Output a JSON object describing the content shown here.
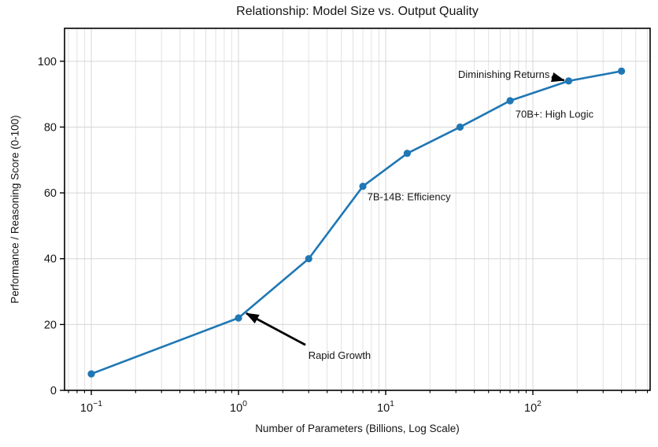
{
  "chart_data": {
    "type": "line",
    "title": "Relationship: Model Size vs. Output Quality",
    "xlabel": "Number of Parameters (Billions, Log Scale)",
    "ylabel": "Performance / Reasoning Score (0-100)",
    "x_scale": "log",
    "grid": true,
    "legend": "none",
    "x": [
      0.1,
      1,
      3,
      7,
      14,
      32,
      70,
      175,
      400
    ],
    "y": [
      5,
      22,
      40,
      62,
      72,
      80,
      88,
      94,
      97
    ],
    "xlim": [
      0.0658,
      626
    ],
    "ylim": [
      0,
      110
    ],
    "x_ticks": [
      {
        "value": 0.1,
        "exp": "−1"
      },
      {
        "value": 1,
        "exp": "0"
      },
      {
        "value": 10,
        "exp": "1"
      },
      {
        "value": 100,
        "exp": "2"
      }
    ],
    "y_ticks": [
      0,
      20,
      40,
      60,
      80,
      100
    ],
    "annotations": [
      {
        "text": "Diminishing Returns",
        "x": 130,
        "y": 96.0,
        "align": "end",
        "arrow": {
          "from": [
            134,
            95.2
          ],
          "to": [
            163,
            94.2
          ]
        }
      },
      {
        "text": "70B+: High Logic",
        "x": 76,
        "y": 83.9,
        "align": "start"
      },
      {
        "text": "7B-14B: Efficiency",
        "x": 7.5,
        "y": 58.8,
        "align": "start"
      },
      {
        "text": "Rapid Growth",
        "x": 2.98,
        "y": 10.7,
        "align": "start",
        "arrow": {
          "from": [
            2.85,
            13.8
          ],
          "to": [
            1.13,
            23.4
          ]
        }
      }
    ],
    "colors": {
      "line": "#1f77b4",
      "marker": "#1f77b4",
      "grid_major": "#d6d6d6",
      "grid_minor": "#e2e2e2",
      "axis": "#000000",
      "text": "#151515",
      "annotation": "#000000",
      "background": "#ffffff"
    }
  }
}
